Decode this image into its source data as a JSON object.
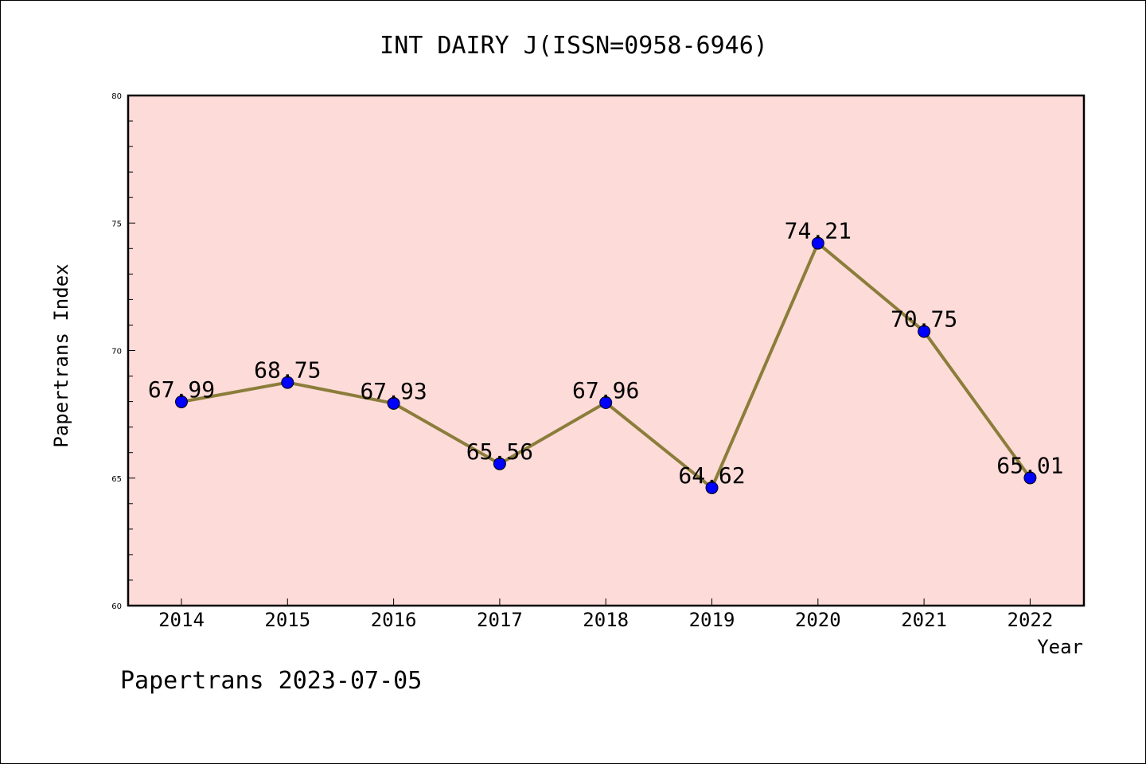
{
  "chart_data": {
    "type": "line",
    "title": "INT DAIRY J(ISSN=0958-6946)",
    "xlabel": "Year",
    "ylabel": "Papertrans Index",
    "categories": [
      "2014",
      "2015",
      "2016",
      "2017",
      "2018",
      "2019",
      "2020",
      "2021",
      "2022"
    ],
    "series": [
      {
        "values": [
          67.99,
          68.75,
          67.93,
          65.56,
          67.96,
          64.62,
          74.21,
          70.75,
          65.01
        ],
        "labels": [
          "67.99",
          "68.75",
          "67.93",
          "65.56",
          "67.96",
          "64.62",
          "74.21",
          "70.75",
          "65.01"
        ]
      }
    ],
    "ylim": [
      60,
      80
    ],
    "yticks": [
      "60",
      "65",
      "70",
      "75",
      "80"
    ],
    "grid": false,
    "colors": {
      "plot_background": "#fddbd8",
      "line": "#8b7d3a",
      "marker": "#0000ff"
    }
  },
  "footer": {
    "text": "Papertrans 2023-07-05"
  }
}
